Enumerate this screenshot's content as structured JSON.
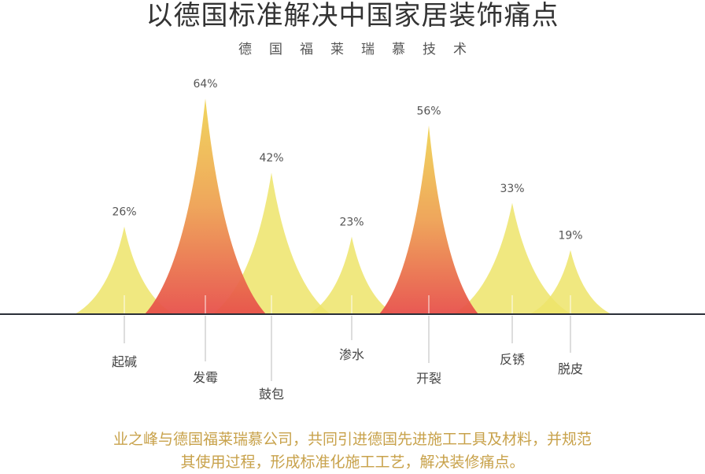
{
  "title": "以德国标准解决中国家居装饰痛点",
  "subtitle": "德国福莱瑞慕技术",
  "footer": {
    "line1": "业之峰与德国福莱瑞慕公司，共同引进德国先进施工工具及材料，并规范",
    "line2": "其使用过程，形成标准化施工工艺，解决装修痛点。"
  },
  "colors": {
    "peak_light": "#ede46a",
    "peak_dark_top": "#f0d456",
    "peak_dark_bottom": "#e7504a",
    "baseline": "#2a2f38",
    "footer_text": "#c8a24b"
  },
  "chart_data": {
    "type": "area",
    "title": "以德国标准解决中国家居装饰痛点",
    "subtitle": "德国福莱瑞慕技术",
    "xlabel": "",
    "ylabel": "",
    "unit": "%",
    "ylim": [
      0,
      64
    ],
    "grid": false,
    "legend": "none",
    "categories": [
      "起碱",
      "发霉",
      "鼓包",
      "渗水",
      "开裂",
      "反锈",
      "脱皮"
    ],
    "values": [
      26,
      64,
      42,
      23,
      56,
      33,
      19
    ],
    "labels": [
      "26%",
      "64%",
      "42%",
      "23%",
      "56%",
      "33%",
      "19%"
    ],
    "highlighted": [
      "发霉",
      "开裂"
    ]
  }
}
